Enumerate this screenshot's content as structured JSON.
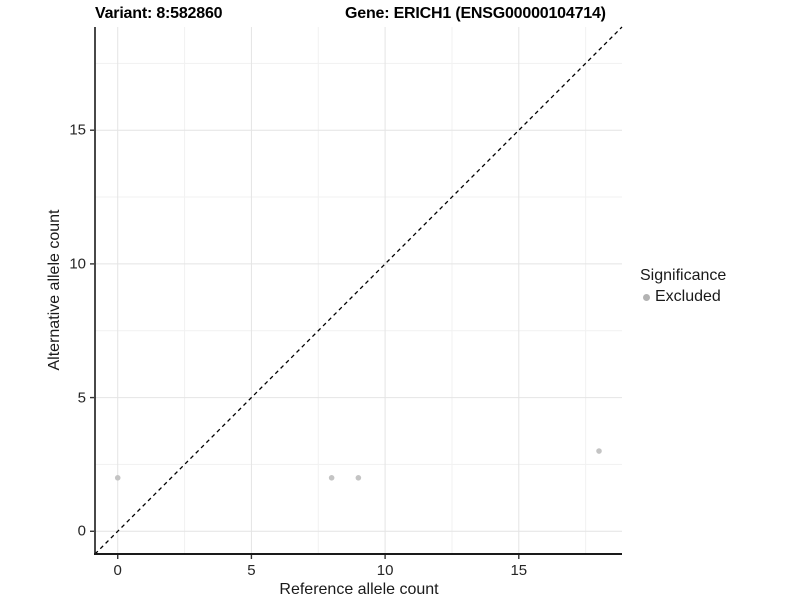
{
  "titles": {
    "variant": "Variant: 8:582860",
    "gene": "Gene: ERICH1 (ENSG00000104714)"
  },
  "axes": {
    "x_label": "Reference allele count",
    "y_label": "Alternative allele count"
  },
  "legend": {
    "title": "Significance",
    "items": [
      {
        "label": "Excluded",
        "color": "#b3b3b3"
      }
    ]
  },
  "colors": {
    "background": "#ffffff",
    "axis_line": "#1a1a1a",
    "tick_mark": "#333333",
    "major_gridline": "#e4e4e4",
    "minor_gridline": "#f1f1f1",
    "point": "#c4c4c4",
    "reference_line": "#000000"
  },
  "chart_data": {
    "type": "scatter",
    "title": "Variant: 8:582860 — Gene: ERICH1 (ENSG00000104714)",
    "xlabel": "Reference allele count",
    "ylabel": "Alternative allele count",
    "xlim": [
      -0.85,
      18.86
    ],
    "ylim": [
      -0.85,
      18.86
    ],
    "x_major_ticks": [
      0,
      5,
      10,
      15
    ],
    "y_major_ticks": [
      0,
      5,
      10,
      15
    ],
    "minor_gridlines": [
      2.5,
      7.5,
      12.5,
      17.5
    ],
    "grid": true,
    "legend_position": "right",
    "legend_title": "Significance",
    "series": [
      {
        "name": "Excluded",
        "color": "#c4c4c4",
        "points": [
          [
            0,
            2
          ],
          [
            8,
            2
          ],
          [
            9,
            2
          ],
          [
            18,
            3
          ]
        ]
      }
    ],
    "reference_line": {
      "kind": "identity",
      "style": "dashed",
      "color": "#000000"
    }
  }
}
